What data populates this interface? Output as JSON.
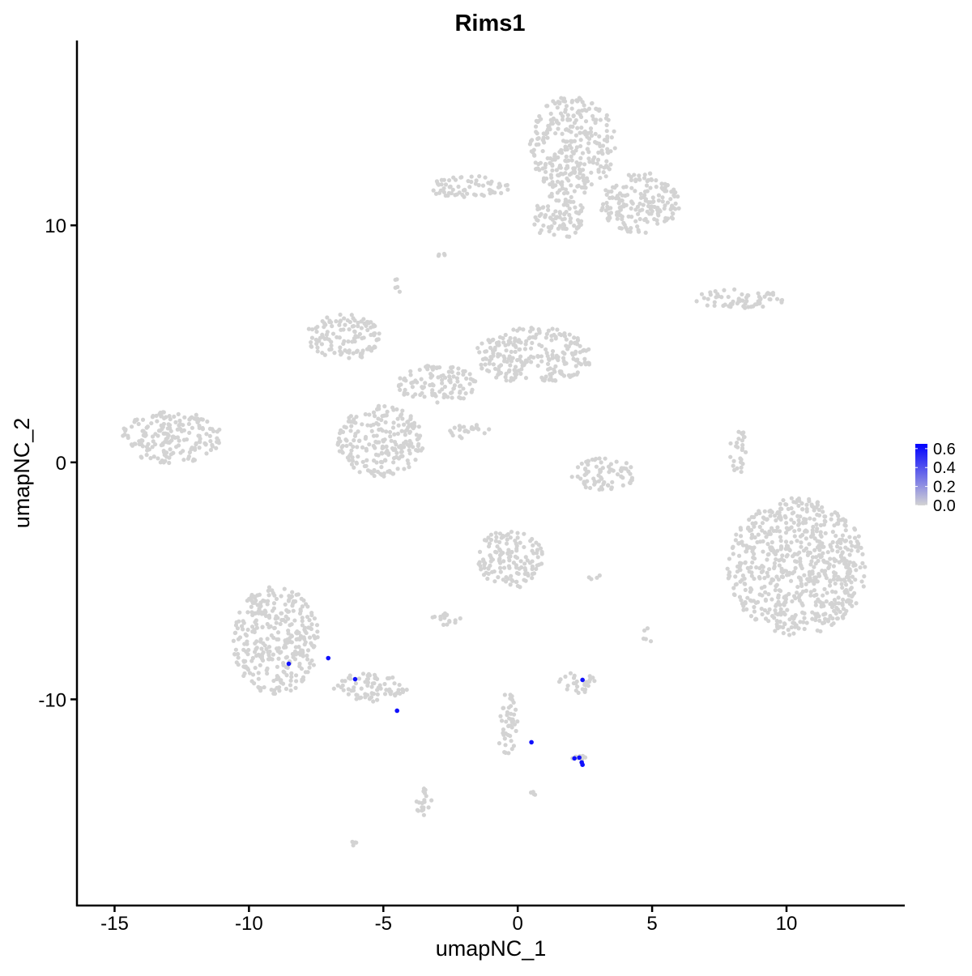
{
  "chart_data": {
    "type": "scatter",
    "title": "Rims1",
    "xlabel": "umapNC_1",
    "ylabel": "umapNC_2",
    "xlim": [
      -16.4,
      14.4
    ],
    "ylim": [
      -18.7,
      17.8
    ],
    "xticks": [
      -15,
      -10,
      -5,
      0,
      5,
      10
    ],
    "yticks": [
      -10,
      0,
      10
    ],
    "grid": false,
    "colors": {
      "low": "#d3d3d3",
      "high": "#0000ff"
    },
    "legend": {
      "placement": "right",
      "type": "colorbar",
      "range": [
        0.0,
        0.65
      ],
      "ticks": [
        "0.0",
        "0.2",
        "0.4",
        "0.6"
      ]
    },
    "background_clusters": [
      {
        "center": [
          2.05,
          13.4
        ],
        "spread": [
          1.6,
          2.1
        ],
        "value": 0
      },
      {
        "center": [
          4.55,
          10.95
        ],
        "spread": [
          1.5,
          1.3
        ],
        "value": 0
      },
      {
        "center": [
          -1.8,
          11.6
        ],
        "spread": [
          1.5,
          0.5
        ],
        "value": 0
      },
      {
        "center": [
          1.5,
          10.4
        ],
        "spread": [
          1.0,
          1.0
        ],
        "value": 0
      },
      {
        "center": [
          -2.8,
          8.7
        ],
        "spread": [
          0.25,
          0.15
        ],
        "value": 0
      },
      {
        "center": [
          -4.5,
          7.45
        ],
        "spread": [
          0.2,
          0.3
        ],
        "value": 0
      },
      {
        "center": [
          8.3,
          6.9
        ],
        "spread": [
          1.8,
          0.4
        ],
        "value": 0
      },
      {
        "center": [
          -12.9,
          1.05
        ],
        "spread": [
          1.9,
          1.1
        ],
        "value": 0
      },
      {
        "center": [
          -6.45,
          5.3
        ],
        "spread": [
          1.4,
          1.0
        ],
        "value": 0
      },
      {
        "center": [
          -5.1,
          0.9
        ],
        "spread": [
          1.6,
          1.5
        ],
        "value": 0
      },
      {
        "center": [
          0.6,
          4.5
        ],
        "spread": [
          2.2,
          1.2
        ],
        "value": 0
      },
      {
        "center": [
          -3.0,
          3.3
        ],
        "spread": [
          1.5,
          0.8
        ],
        "value": 0
      },
      {
        "center": [
          -1.8,
          1.3
        ],
        "spread": [
          0.8,
          0.3
        ],
        "value": 0
      },
      {
        "center": [
          3.2,
          -0.5
        ],
        "spread": [
          1.2,
          0.7
        ],
        "value": 0
      },
      {
        "center": [
          10.4,
          -4.4
        ],
        "spread": [
          2.6,
          2.9
        ],
        "value": 0
      },
      {
        "center": [
          8.2,
          0.5
        ],
        "spread": [
          0.3,
          1.0
        ],
        "value": 0
      },
      {
        "center": [
          -0.27,
          -4.06
        ],
        "spread": [
          1.2,
          1.3
        ],
        "value": 0
      },
      {
        "center": [
          -2.6,
          -6.6
        ],
        "spread": [
          0.6,
          0.3
        ],
        "value": 0
      },
      {
        "center": [
          -9.0,
          -7.5
        ],
        "spread": [
          1.6,
          2.3
        ],
        "value": 0
      },
      {
        "center": [
          -5.5,
          -9.5
        ],
        "spread": [
          1.4,
          0.6
        ],
        "value": 0
      },
      {
        "center": [
          2.2,
          -9.3
        ],
        "spread": [
          0.7,
          0.45
        ],
        "value": 0
      },
      {
        "center": [
          -0.4,
          -11.0
        ],
        "spread": [
          0.4,
          1.3
        ],
        "value": 0
      },
      {
        "center": [
          -3.5,
          -14.3
        ],
        "spread": [
          0.3,
          0.7
        ],
        "value": 0
      },
      {
        "center": [
          -6.1,
          -16.1
        ],
        "spread": [
          0.15,
          0.1
        ],
        "value": 0
      },
      {
        "center": [
          0.55,
          -14.0
        ],
        "spread": [
          0.15,
          0.1
        ],
        "value": 0
      },
      {
        "center": [
          2.3,
          -12.6
        ],
        "spread": [
          0.3,
          0.25
        ],
        "value": 0
      },
      {
        "center": [
          4.85,
          -7.3
        ],
        "spread": [
          0.2,
          0.3
        ],
        "value": 0
      },
      {
        "center": [
          2.9,
          -4.9
        ],
        "spread": [
          0.3,
          0.15
        ],
        "value": 0
      }
    ],
    "expressing_points": [
      {
        "x": -8.52,
        "y": -8.5,
        "value": 0.6
      },
      {
        "x": -7.05,
        "y": -8.26,
        "value": 0.6
      },
      {
        "x": -6.05,
        "y": -9.15,
        "value": 0.6
      },
      {
        "x": -4.49,
        "y": -10.48,
        "value": 0.6
      },
      {
        "x": 0.51,
        "y": -11.81,
        "value": 0.6
      },
      {
        "x": 2.41,
        "y": -9.18,
        "value": 0.6
      },
      {
        "x": 2.11,
        "y": -12.49,
        "value": 0.6
      },
      {
        "x": 2.29,
        "y": -12.46,
        "value": 0.6
      },
      {
        "x": 2.38,
        "y": -12.66,
        "value": 0.6
      },
      {
        "x": 2.41,
        "y": -12.76,
        "value": 0.6
      }
    ]
  }
}
